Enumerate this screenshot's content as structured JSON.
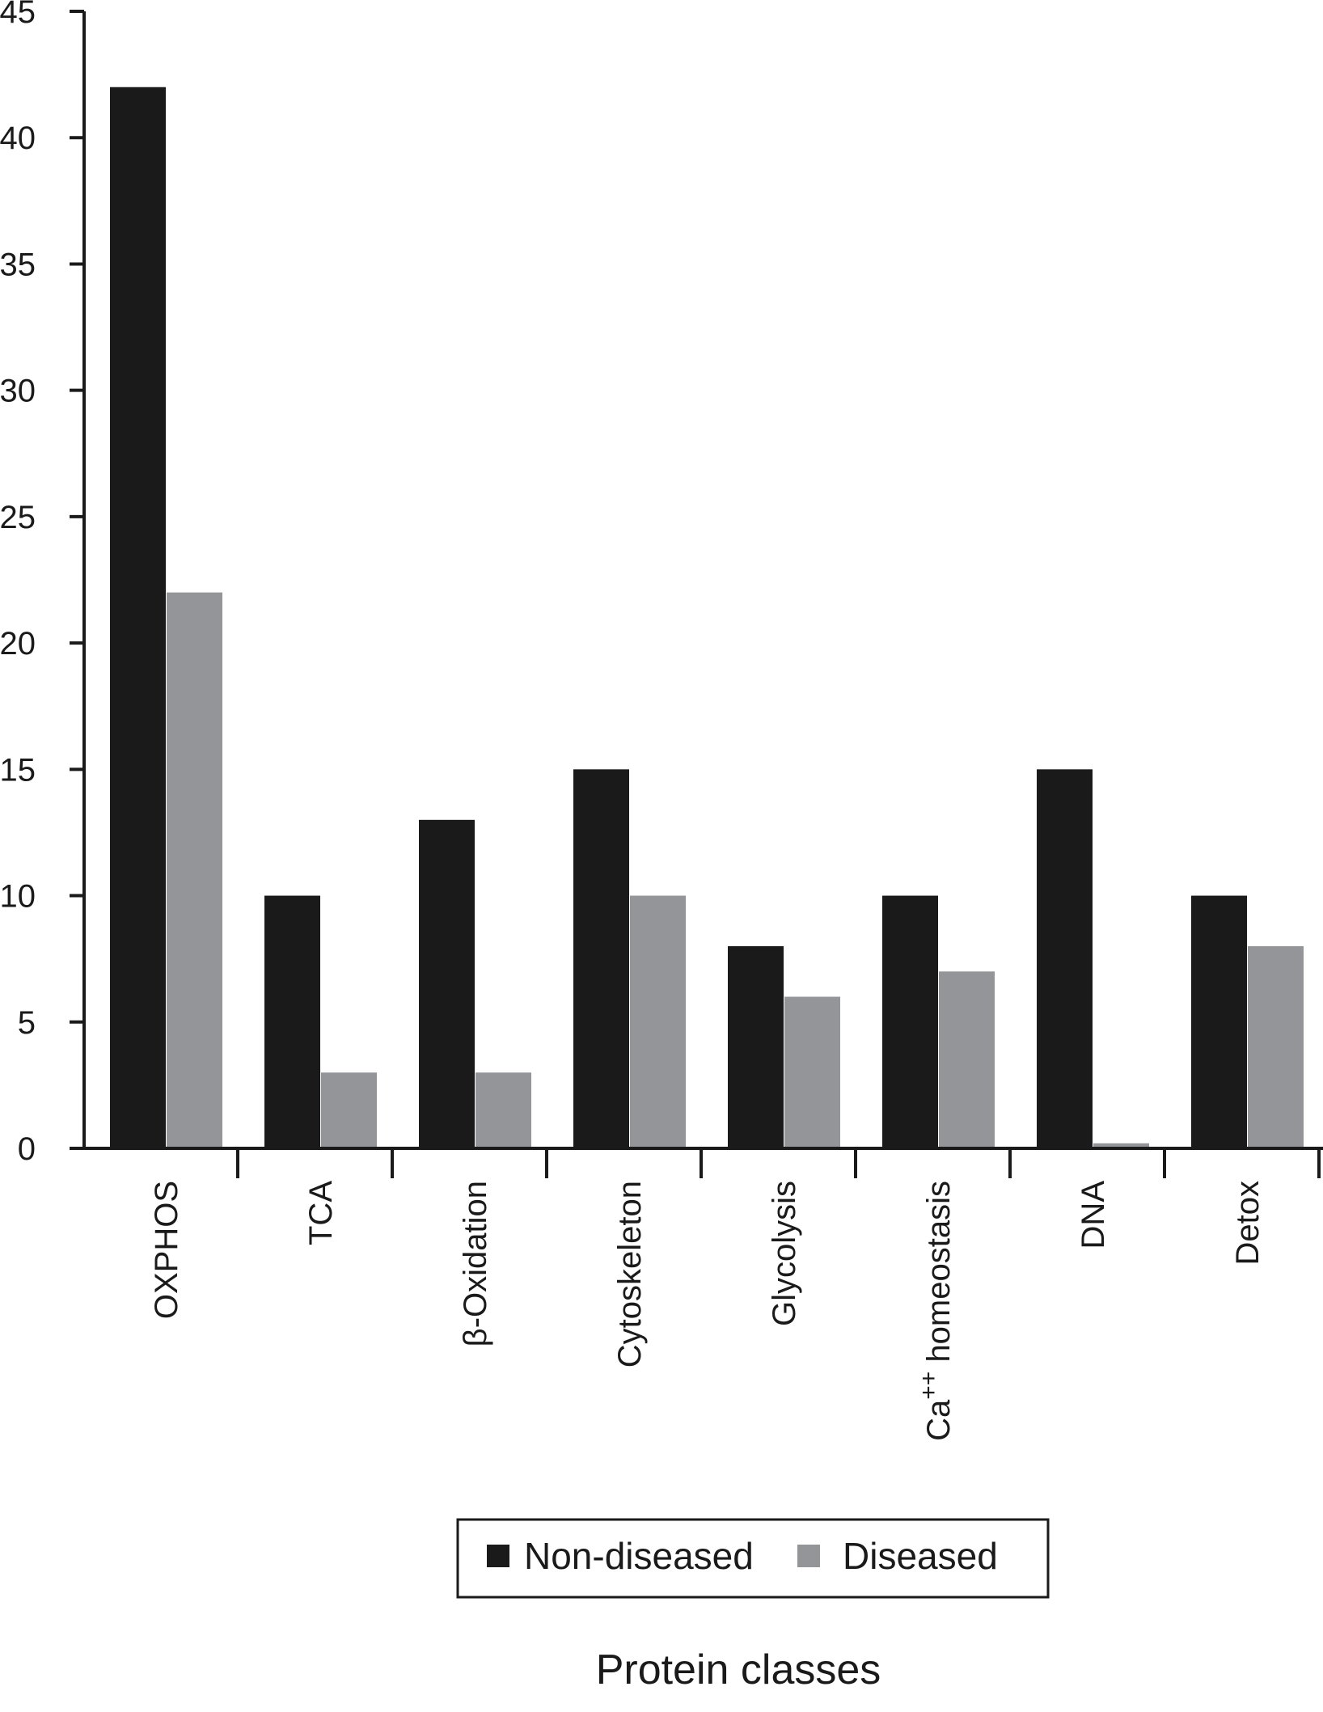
{
  "chart_data": {
    "type": "bar",
    "title": "",
    "xlabel": "Protein classes",
    "ylabel": "",
    "ylim": [
      0,
      45
    ],
    "yticks": [
      0,
      5,
      10,
      15,
      20,
      25,
      30,
      35,
      40,
      45
    ],
    "categories": [
      "OXPHOS",
      "TCA",
      "β-Oxidation",
      "Cytoskeleton",
      "Glycolysis",
      "Ca++ homeostasis",
      "DNA",
      "Detox"
    ],
    "series": [
      {
        "name": "Non-diseased",
        "color": "#1a1a1a",
        "values": [
          42,
          10,
          13,
          15,
          8,
          10,
          15,
          10
        ]
      },
      {
        "name": "Diseased",
        "color": "#939598",
        "values": [
          22,
          3,
          3,
          10,
          6,
          7,
          0.2,
          8
        ]
      }
    ],
    "grid": false,
    "legend_position": "bottom-center"
  }
}
